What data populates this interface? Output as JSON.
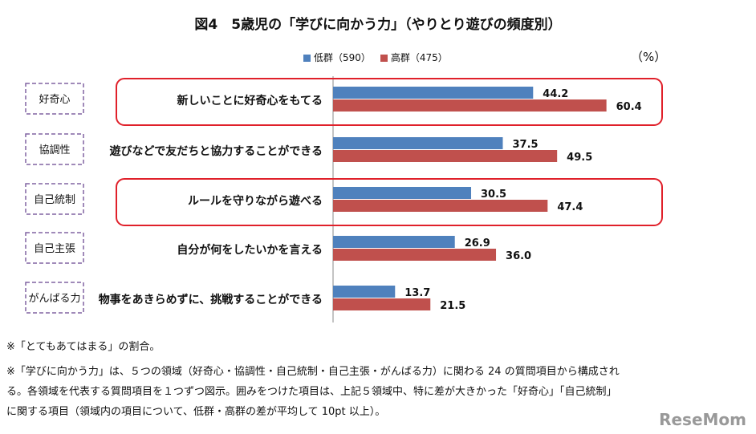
{
  "title": "図4　5歳児の「学びに向かう力」（やりとり遊びの頻度別）",
  "unit": "（%）",
  "chart_data": {
    "type": "bar",
    "orientation": "horizontal",
    "categories": [
      "新しいことに好奇心をもてる",
      "遊びなどで友だちと協力することができる",
      "ルールを守りながら遊べる",
      "自分が何をしたいかを言える",
      "物事をあきらめずに、挑戦することができる"
    ],
    "domains": [
      "好奇心",
      "協調性",
      "自己統制",
      "自己主張",
      "がんばる力"
    ],
    "series": [
      {
        "name": "低群（590）",
        "color": "#4f81bd",
        "values": [
          44.2,
          37.5,
          30.5,
          26.9,
          13.7
        ]
      },
      {
        "name": "高群（475）",
        "color": "#c0504d",
        "values": [
          60.4,
          49.5,
          47.4,
          36.0,
          21.5
        ]
      }
    ],
    "value_labels": [
      [
        "44.2",
        "37.5",
        "30.5",
        "26.9",
        "13.7"
      ],
      [
        "60.4",
        "49.5",
        "47.4",
        "36.0",
        "21.5"
      ]
    ],
    "highlighted": [
      0,
      2
    ],
    "xlim": [
      0,
      100
    ]
  },
  "notes": [
    "※「とてもあてはまる」の割合。",
    "※「学びに向かう力」は、５つの領域（好奇心・協調性・自己統制・自己主張・がんばる力）に関わる 24 の質問項目から構成され",
    "る。各領域を代表する質問項目を１つずつ図示。囲みをつけた項目は、上記５領域中、特に差が大きかった「好奇心」「自己統制」",
    "に関する項目（領域内の項目について、低群・高群の差が平均して 10pt 以上）。"
  ],
  "logo": "ReseMom"
}
